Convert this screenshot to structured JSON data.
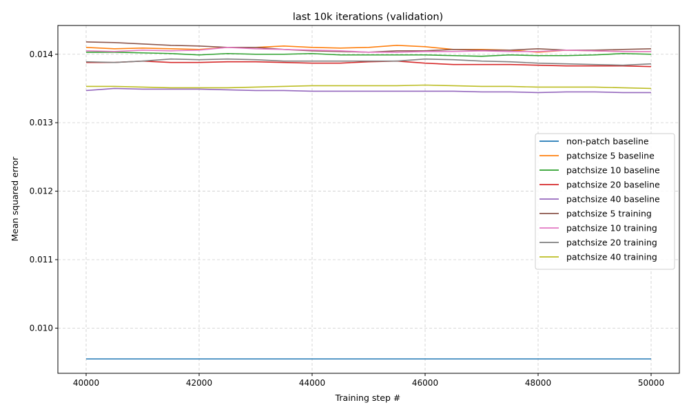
{
  "chart_data": {
    "type": "line",
    "title": "last 10k iterations (validation)",
    "xlabel": "Training step #",
    "ylabel": "Mean squared error",
    "xlim": [
      39500,
      50500
    ],
    "ylim": [
      0.00934,
      0.01442
    ],
    "xticks": [
      40000,
      42000,
      44000,
      46000,
      48000,
      50000
    ],
    "xtick_labels": [
      "40000",
      "42000",
      "44000",
      "46000",
      "48000",
      "50000"
    ],
    "yticks": [
      0.01,
      0.011,
      0.012,
      0.013,
      0.014
    ],
    "ytick_labels": [
      "0.010",
      "0.011",
      "0.012",
      "0.013",
      "0.014"
    ],
    "grid": true,
    "legend_position": "center-right",
    "x": [
      40000,
      40500,
      41000,
      41500,
      42000,
      42500,
      43000,
      43500,
      44000,
      44500,
      45000,
      45500,
      46000,
      46500,
      47000,
      47500,
      48000,
      48500,
      49000,
      49500,
      50000
    ],
    "series": [
      {
        "name": "non-patch baseline",
        "color": "#1f77b4",
        "values": [
          0.00955,
          0.00955,
          0.00955,
          0.00955,
          0.00955,
          0.00955,
          0.00955,
          0.00955,
          0.00955,
          0.00955,
          0.00955,
          0.00955,
          0.00955,
          0.00955,
          0.00955,
          0.00955,
          0.00955,
          0.00955,
          0.00955,
          0.00955,
          0.00955
        ]
      },
      {
        "name": "patchsize 5 baseline",
        "color": "#ff7f0e",
        "values": [
          0.0141,
          0.01408,
          0.01409,
          0.01408,
          0.01407,
          0.0141,
          0.0141,
          0.01412,
          0.0141,
          0.01409,
          0.0141,
          0.01413,
          0.01411,
          0.01407,
          0.01407,
          0.01406,
          0.01403,
          0.01406,
          0.01405,
          0.01404,
          0.01404
        ]
      },
      {
        "name": "patchsize 10 baseline",
        "color": "#2ca02c",
        "values": [
          0.01403,
          0.01403,
          0.01402,
          0.01401,
          0.01399,
          0.01401,
          0.014,
          0.014,
          0.01401,
          0.01399,
          0.01399,
          0.01399,
          0.01399,
          0.01398,
          0.01397,
          0.01399,
          0.01398,
          0.01398,
          0.01399,
          0.01401,
          0.014
        ]
      },
      {
        "name": "patchsize 20 baseline",
        "color": "#d62728",
        "values": [
          0.01388,
          0.01388,
          0.0139,
          0.01388,
          0.01388,
          0.01389,
          0.01389,
          0.01388,
          0.01387,
          0.01387,
          0.01389,
          0.0139,
          0.01387,
          0.01385,
          0.01385,
          0.01385,
          0.01384,
          0.01383,
          0.01383,
          0.01383,
          0.01382
        ]
      },
      {
        "name": "patchsize 40 baseline",
        "color": "#9467bd",
        "values": [
          0.01347,
          0.0135,
          0.01349,
          0.01349,
          0.01349,
          0.01348,
          0.01347,
          0.01347,
          0.01346,
          0.01346,
          0.01346,
          0.01346,
          0.01346,
          0.01346,
          0.01345,
          0.01345,
          0.01344,
          0.01345,
          0.01345,
          0.01344,
          0.01344
        ]
      },
      {
        "name": "patchsize 5 training",
        "color": "#8c564b",
        "values": [
          0.01418,
          0.01417,
          0.01415,
          0.01413,
          0.01412,
          0.0141,
          0.0141,
          0.01407,
          0.01405,
          0.01404,
          0.01403,
          0.01405,
          0.01405,
          0.01407,
          0.01406,
          0.01406,
          0.01408,
          0.01406,
          0.01406,
          0.01407,
          0.01408
        ]
      },
      {
        "name": "patchsize 10 training",
        "color": "#e377c2",
        "values": [
          0.01405,
          0.01404,
          0.01406,
          0.01405,
          0.01406,
          0.0141,
          0.01408,
          0.01407,
          0.01406,
          0.01405,
          0.01403,
          0.01403,
          0.01404,
          0.01404,
          0.01405,
          0.01404,
          0.01404,
          0.01406,
          0.01405,
          0.01404,
          0.01404
        ]
      },
      {
        "name": "patchsize 20 training",
        "color": "#7f7f7f",
        "values": [
          0.01389,
          0.01388,
          0.0139,
          0.01393,
          0.01392,
          0.01393,
          0.01392,
          0.0139,
          0.0139,
          0.0139,
          0.0139,
          0.0139,
          0.01393,
          0.01392,
          0.0139,
          0.01389,
          0.01387,
          0.01386,
          0.01385,
          0.01384,
          0.01386
        ]
      },
      {
        "name": "patchsize 40 training",
        "color": "#bcbd22",
        "values": [
          0.01353,
          0.01353,
          0.01352,
          0.01351,
          0.01351,
          0.01351,
          0.01352,
          0.01353,
          0.01354,
          0.01354,
          0.01354,
          0.01354,
          0.01355,
          0.01354,
          0.01353,
          0.01353,
          0.01352,
          0.01352,
          0.01352,
          0.01351,
          0.0135
        ]
      }
    ]
  }
}
